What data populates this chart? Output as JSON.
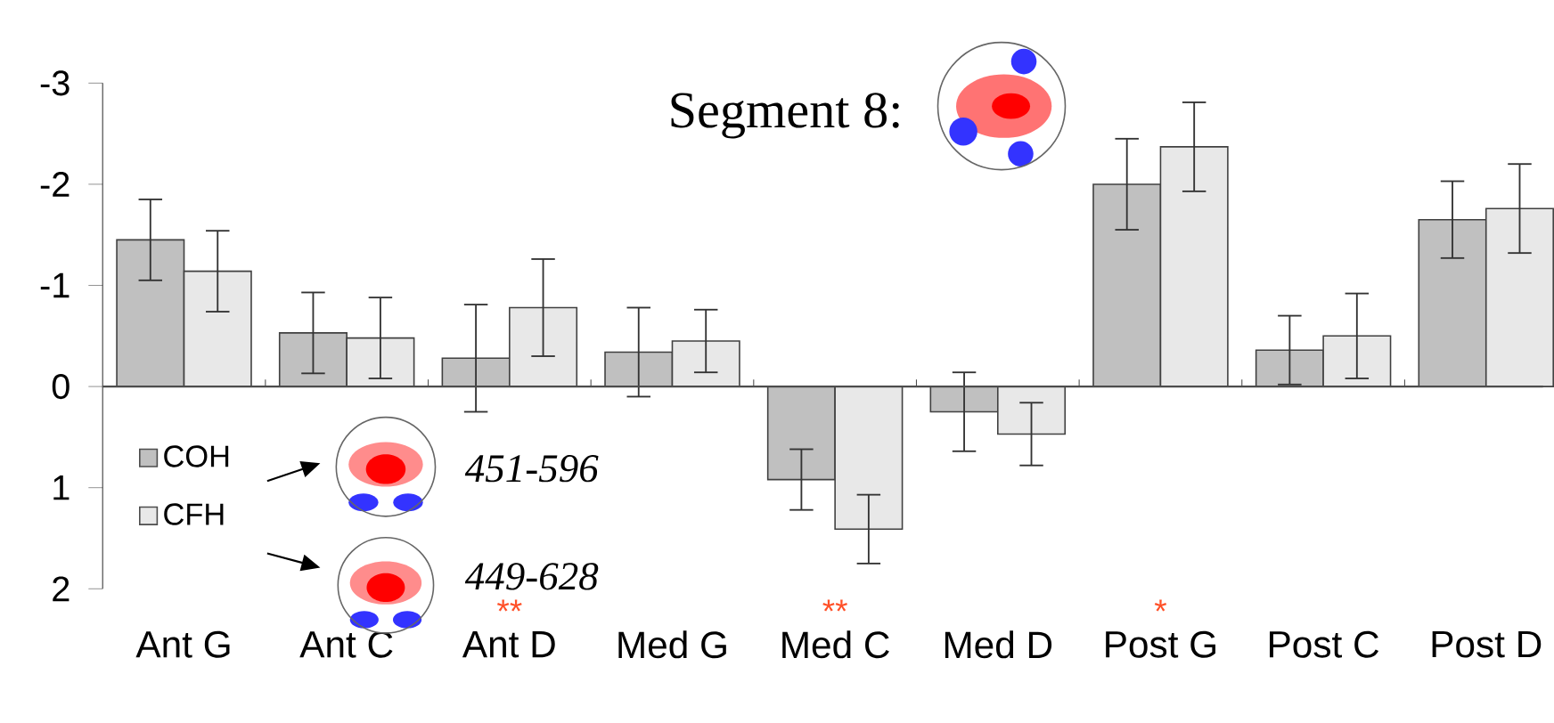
{
  "chart_data": {
    "type": "bar",
    "title": "Segment 8:",
    "categories": [
      "Ant G",
      "Ant C",
      "Ant D",
      "Med G",
      "Med C",
      "Med D",
      "Post G",
      "Post C",
      "Post D"
    ],
    "series": [
      {
        "name": "COH",
        "color": "#c0c0c0",
        "values": [
          -1.45,
          -0.53,
          -0.28,
          -0.34,
          0.92,
          0.25,
          -2.0,
          -0.36,
          -1.65
        ],
        "errors": [
          0.4,
          0.4,
          0.53,
          0.44,
          0.3,
          0.39,
          0.45,
          0.34,
          0.38
        ]
      },
      {
        "name": "CFH",
        "color": "#e8e8e8",
        "values": [
          -1.14,
          -0.48,
          -0.78,
          -0.45,
          1.41,
          0.47,
          -2.37,
          -0.5,
          -1.76
        ],
        "errors": [
          0.4,
          0.4,
          0.48,
          0.31,
          0.34,
          0.31,
          0.44,
          0.42,
          0.44
        ]
      }
    ],
    "ylim": [
      2,
      -3
    ],
    "yticks": [
      -3,
      -2,
      -1,
      0,
      1,
      2
    ],
    "legend": "bottom left",
    "annotations": [
      "451-596",
      "449-628",
      "**",
      "**",
      "*"
    ]
  }
}
